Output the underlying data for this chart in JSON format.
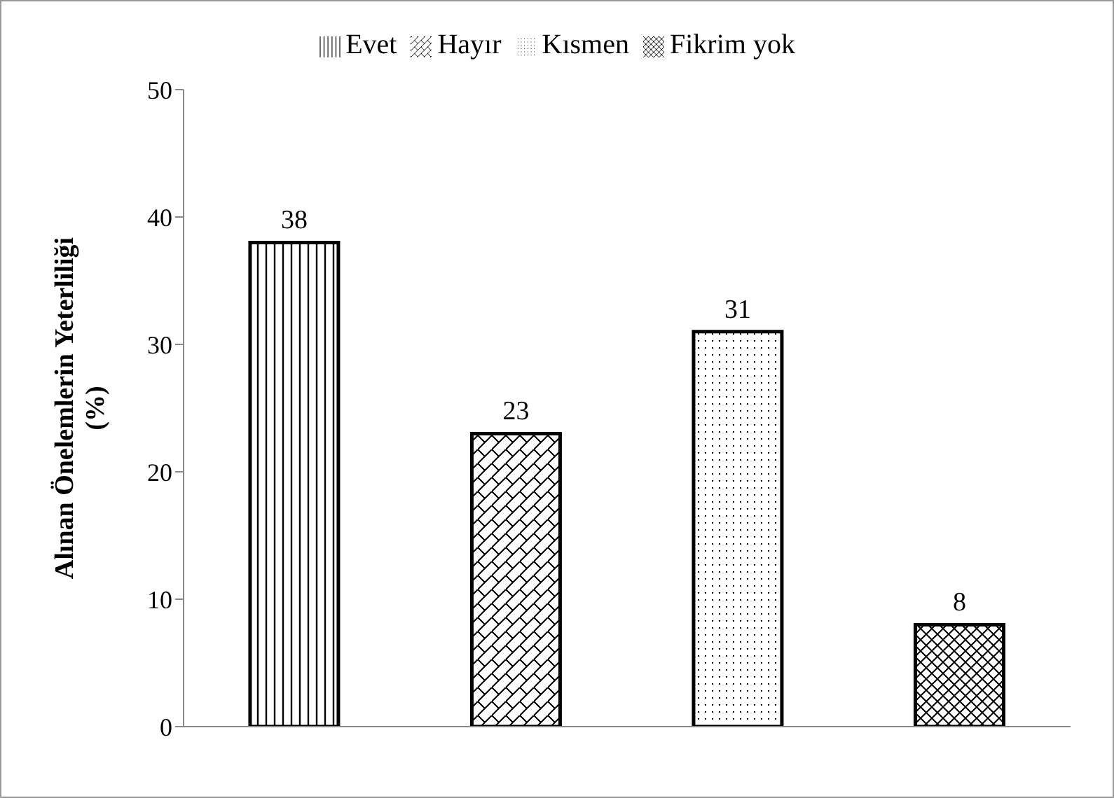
{
  "chart_data": {
    "type": "bar",
    "ylabel": "Alınan Önelemlerin Yeterliliği\n(%)",
    "categories": [
      null,
      null,
      null,
      null
    ],
    "series": [
      {
        "name": "Evet",
        "color": "#000000",
        "values": [
          38,
          null,
          null,
          null
        ]
      },
      {
        "name": "Hayır",
        "color": "#000000",
        "values": [
          null,
          23,
          null,
          null
        ]
      },
      {
        "name": "Kısmen",
        "color": "#000000",
        "values": [
          null,
          null,
          31,
          null
        ]
      },
      {
        "name": "Fikrim yok",
        "color": "#000000",
        "values": [
          null,
          null,
          null,
          8
        ]
      }
    ],
    "stacked": true,
    "ylim": [
      0,
      50
    ],
    "yticks": [
      0,
      10,
      20,
      30,
      40,
      50
    ],
    "grid": false,
    "legend": "top",
    "data_labels": true
  }
}
